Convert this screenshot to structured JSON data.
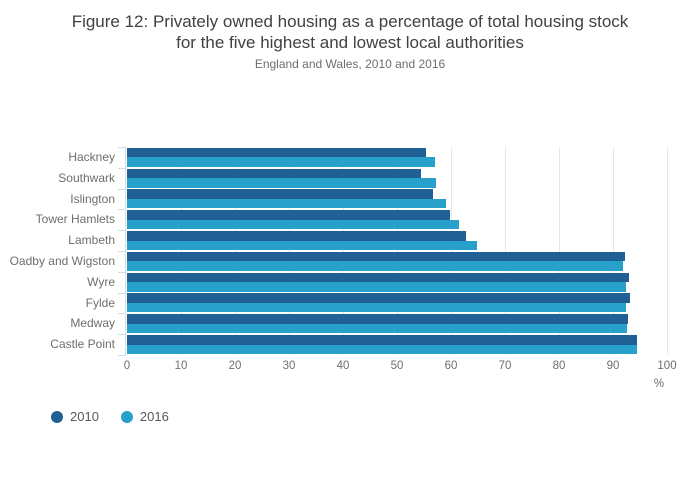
{
  "figure": {
    "title_line1": "Figure 12: Privately owned housing as a percentage of total housing stock",
    "title_line2": "for the five highest and lowest local authorities",
    "subtitle": "England and Wales, 2010 and 2016"
  },
  "chart_data": {
    "type": "bar",
    "orientation": "horizontal",
    "title": "Figure 12: Privately owned housing as a percentage of total housing stock for the five highest and lowest local authorities",
    "subtitle": "England and Wales, 2010 and 2016",
    "categories": [
      "Hackney",
      "Southwark",
      "Islington",
      "Tower Hamlets",
      "Lambeth",
      "Oadby and Wigston",
      "Wyre",
      "Fylde",
      "Medway",
      "Castle Point"
    ],
    "series": [
      {
        "name": "2010",
        "color": "#206095",
        "values": [
          55.3,
          54.4,
          56.7,
          59.8,
          62.7,
          92.3,
          92.9,
          93.1,
          92.7,
          94.4
        ]
      },
      {
        "name": "2016",
        "color": "#27A0CC",
        "values": [
          57.0,
          57.3,
          59.1,
          61.5,
          64.8,
          91.9,
          92.4,
          92.4,
          92.5,
          94.4
        ]
      }
    ],
    "xlabel": "%",
    "ylabel": "",
    "xlim": [
      0,
      100
    ],
    "x_ticks": [
      0,
      10,
      20,
      30,
      40,
      50,
      60,
      70,
      80,
      90,
      100
    ],
    "grid": "vertical",
    "legend_position": "bottom-left"
  }
}
